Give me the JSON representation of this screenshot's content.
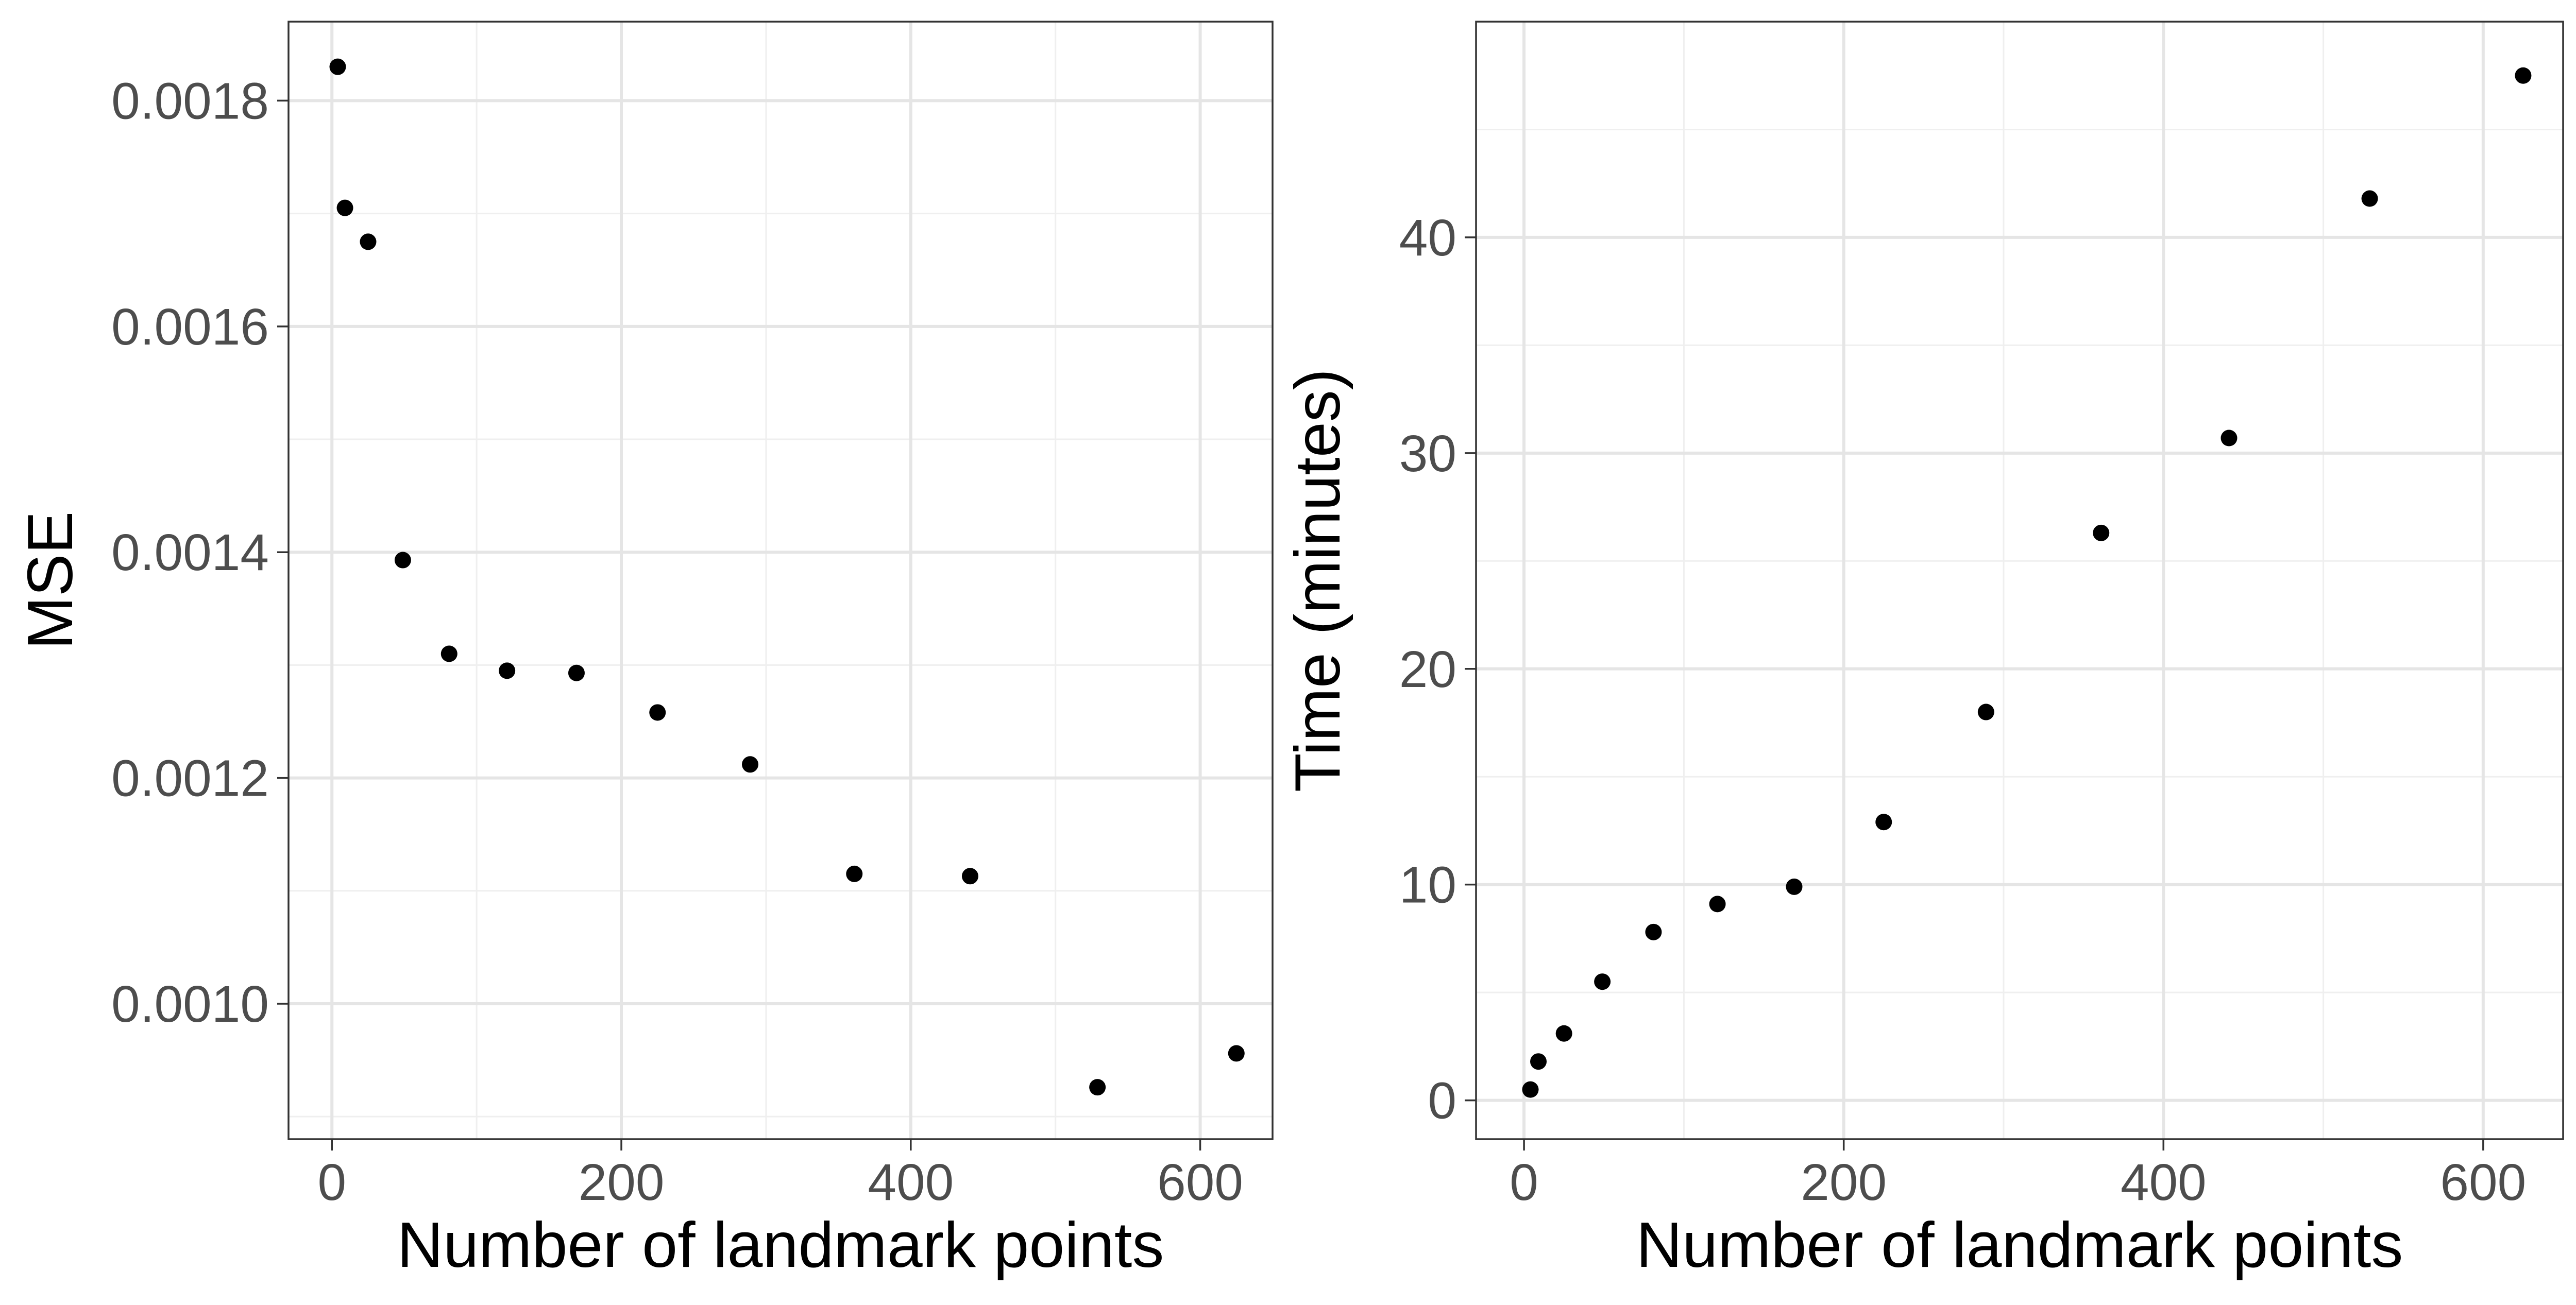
{
  "chart_data": [
    {
      "type": "scatter",
      "xlabel": "Number of landmark points",
      "ylabel": "MSE",
      "xlim": [
        -30,
        650
      ],
      "ylim": [
        0.00088,
        0.00187
      ],
      "xticks": [
        0,
        200,
        400,
        600
      ],
      "yticks": [
        0.001,
        0.0012,
        0.0014,
        0.0016,
        0.0018
      ],
      "xtick_labels": [
        "0",
        "200",
        "400",
        "600"
      ],
      "ytick_labels": [
        "0.0010",
        "0.0012",
        "0.0014",
        "0.0016",
        "0.0018"
      ],
      "grid": true,
      "x": [
        4,
        9,
        25,
        49,
        81,
        121,
        169,
        225,
        289,
        361,
        441,
        529,
        625
      ],
      "y": [
        0.00183,
        0.001705,
        0.001675,
        0.001393,
        0.00131,
        0.001295,
        0.001293,
        0.001258,
        0.001212,
        0.001115,
        0.001113,
        0.000926,
        0.000956
      ]
    },
    {
      "type": "scatter",
      "xlabel": "Number of landmark points",
      "ylabel": "Time (minutes)",
      "xlim": [
        -30,
        650
      ],
      "ylim": [
        -1.8,
        50.0
      ],
      "xticks": [
        0,
        200,
        400,
        600
      ],
      "yticks": [
        0,
        10,
        20,
        30,
        40
      ],
      "xtick_labels": [
        "0",
        "200",
        "400",
        "600"
      ],
      "ytick_labels": [
        "0",
        "10",
        "20",
        "30",
        "40"
      ],
      "grid": true,
      "x": [
        4,
        9,
        25,
        49,
        81,
        121,
        169,
        225,
        289,
        361,
        441,
        529,
        625
      ],
      "y": [
        0.5,
        1.8,
        3.1,
        5.5,
        7.8,
        9.1,
        9.9,
        12.9,
        18.0,
        26.3,
        30.7,
        41.8,
        47.5
      ]
    }
  ]
}
